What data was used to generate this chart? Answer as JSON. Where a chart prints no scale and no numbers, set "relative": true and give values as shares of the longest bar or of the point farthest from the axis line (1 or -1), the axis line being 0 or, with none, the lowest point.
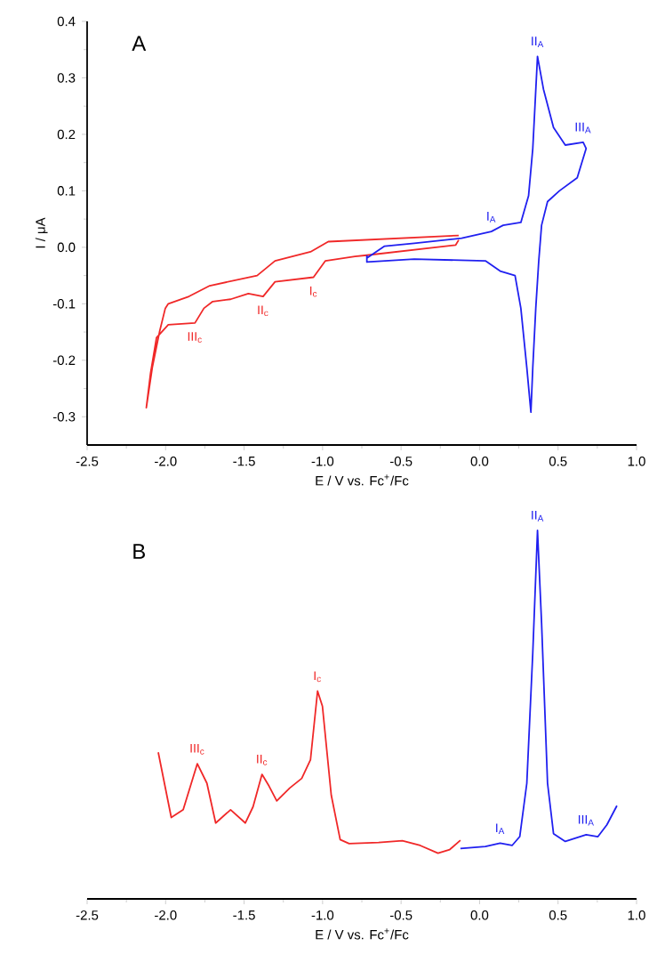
{
  "chart_data": [
    {
      "type": "line",
      "title": "A",
      "xlabel": "E / V vs. Fc$^{+}$/Fc",
      "ylabel": "I / μA",
      "xlim": [
        -2.5,
        1.0
      ],
      "ylim": [
        -0.35,
        0.4
      ],
      "xticks": [
        -2.5,
        {
          "value": -2,
          "label": "-2.0"
        },
        -1.5,
        {
          "value": -1,
          "label": "-1.0"
        },
        -0.5,
        {
          "value": 0,
          "label": "0.0"
        },
        0.5,
        {
          "value": 1,
          "label": "1.0"
        }
      ],
      "yticks": [
        -0.3,
        -0.2,
        -0.1,
        {
          "value": 0,
          "label": "0.0"
        },
        0.1,
        0.2,
        0.3,
        0.4
      ],
      "series": [
        {
          "color": "#f02828",
          "x": [
            -0.133,
            -0.964,
            -1.077,
            -1.303,
            -1.417,
            -1.719,
            -1.851,
            -1.983,
            -2.002,
            -2.039,
            -2.085,
            -2.123,
            -2.096,
            -2.058,
            -1.983,
            -1.813,
            -1.756,
            -1.7,
            -1.586,
            -1.473,
            -1.379,
            -1.303,
            -1.058,
            -0.982,
            -0.794,
            -0.718,
            -0.152,
            -0.133
          ],
          "values": [
            0.021,
            0.01,
            -0.008,
            -0.024,
            -0.05,
            -0.068,
            -0.087,
            -0.1,
            -0.108,
            -0.15,
            -0.213,
            -0.284,
            -0.223,
            -0.16,
            -0.137,
            -0.134,
            -0.108,
            -0.096,
            -0.092,
            -0.082,
            -0.087,
            -0.061,
            -0.053,
            -0.024,
            -0.016,
            -0.014,
            0.004,
            0.013
          ]
        },
        {
          "color": "#2020f0",
          "x": [
            -0.718,
            -0.605,
            -0.416,
            -0.114,
            0.075,
            0.15,
            0.263,
            0.312,
            0.339,
            0.369,
            0.407,
            0.471,
            0.546,
            0.66,
            0.679,
            0.622,
            0.509,
            0.433,
            0.395,
            0.377,
            0.358,
            0.339,
            0.327,
            0.301,
            0.263,
            0.226,
            0.131,
            0.037,
            -0.416,
            -0.718,
            -0.718
          ],
          "values": [
            -0.019,
            0.002,
            0.007,
            0.016,
            0.028,
            0.039,
            0.044,
            0.091,
            0.175,
            0.338,
            0.28,
            0.212,
            0.181,
            0.186,
            0.175,
            0.123,
            0.1,
            0.081,
            0.039,
            -0.024,
            -0.108,
            -0.213,
            -0.292,
            -0.213,
            -0.108,
            -0.05,
            -0.042,
            -0.024,
            -0.021,
            -0.026,
            -0.014
          ]
        }
      ],
      "annotations": [
        {
          "text": "I$_{A}$",
          "x": 0.075,
          "y": 0.028
        },
        {
          "text": "II$_{A}$",
          "x": 0.369,
          "y": 0.338
        },
        {
          "text": "III$_{A}$",
          "x": 0.66,
          "y": 0.186
        },
        {
          "text": "I$_{c}$",
          "x": -1.058,
          "y": -0.053
        },
        {
          "text": "II$_{c}$",
          "x": -1.379,
          "y": -0.087
        },
        {
          "text": "III$_{c}$",
          "x": -1.813,
          "y": -0.134
        }
      ]
    },
    {
      "type": "line",
      "title": "B",
      "xlabel": "E / V vs. Fc$^{+}$/Fc",
      "relative": true,
      "xlim": [
        -2.5,
        1.0
      ],
      "xticks": [
        -2.5,
        {
          "value": -2,
          "label": "-2.0"
        },
        -1.5,
        {
          "value": -1,
          "label": "-1.0"
        },
        -0.5,
        {
          "value": 0,
          "label": "0.0"
        },
        0.5,
        {
          "value": 1,
          "label": "1.0"
        }
      ],
      "series": [
        {
          "color": "#f02828",
          "x": [
            -2.047,
            -1.964,
            -1.888,
            -1.798,
            -1.737,
            -1.681,
            -1.586,
            -1.492,
            -1.443,
            -1.386,
            -1.341,
            -1.292,
            -1.209,
            -1.133,
            -1.077,
            -1.032,
            -1.001,
            -0.945,
            -0.888,
            -0.831,
            -0.643,
            -0.492,
            -0.378,
            -0.265,
            -0.19,
            -0.122
          ],
          "values": [
            0.398,
            0.221,
            0.242,
            0.367,
            0.314,
            0.206,
            0.242,
            0.206,
            0.25,
            0.338,
            0.306,
            0.266,
            0.301,
            0.327,
            0.378,
            0.564,
            0.523,
            0.282,
            0.161,
            0.15,
            0.153,
            0.158,
            0.145,
            0.124,
            0.134,
            0.159
          ]
        },
        {
          "color": "#2020f0",
          "x": [
            -0.122,
            0.037,
            0.131,
            0.207,
            0.256,
            0.301,
            0.339,
            0.369,
            0.395,
            0.433,
            0.471,
            0.546,
            0.679,
            0.754,
            0.811,
            0.875
          ],
          "values": [
            0.137,
            0.142,
            0.151,
            0.145,
            0.169,
            0.314,
            0.668,
            1.0,
            0.749,
            0.314,
            0.177,
            0.156,
            0.174,
            0.169,
            0.201,
            0.253
          ]
        }
      ],
      "annotations": [
        {
          "text": "III$_{c}$",
          "x": -1.798,
          "y": 0.367
        },
        {
          "text": "II$_{c}$",
          "x": -1.386,
          "y": 0.338
        },
        {
          "text": "I$_{c}$",
          "x": -1.032,
          "y": 0.564
        },
        {
          "text": "I$_{A}$",
          "x": 0.131,
          "y": 0.151
        },
        {
          "text": "II$_{A}$",
          "x": 0.369,
          "y": 1.0
        },
        {
          "text": "III$_{A}$",
          "x": 0.679,
          "y": 0.174
        }
      ]
    }
  ]
}
